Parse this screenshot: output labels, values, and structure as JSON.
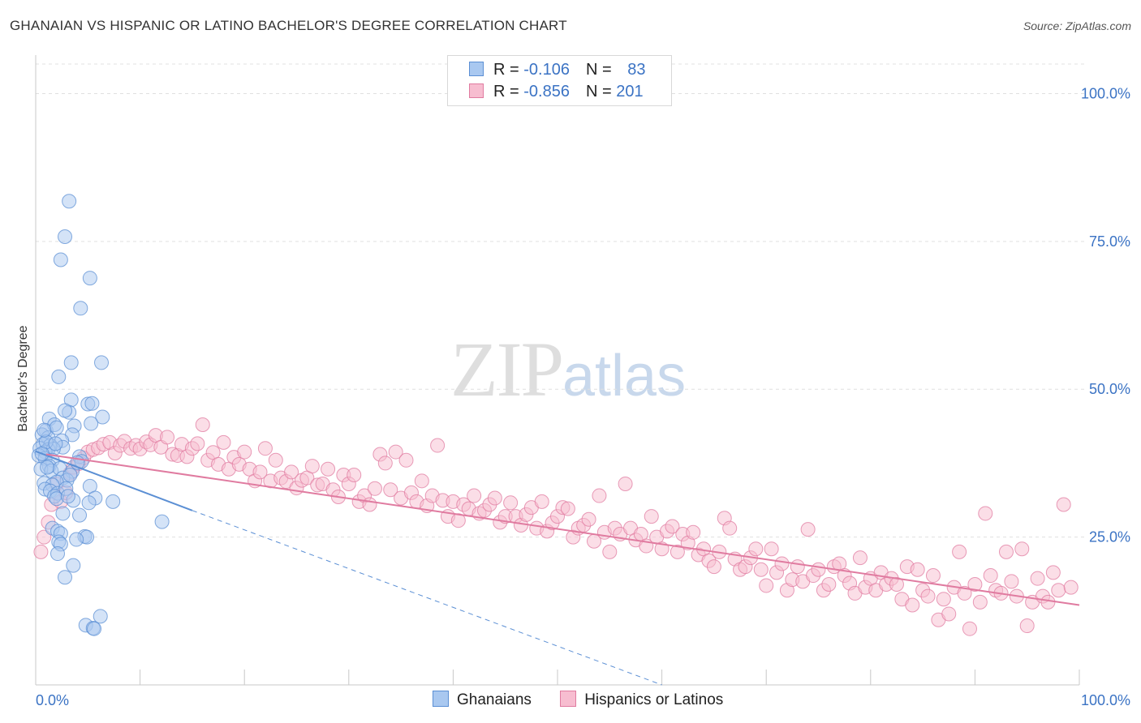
{
  "title": "GHANAIAN VS HISPANIC OR LATINO BACHELOR'S DEGREE CORRELATION CHART",
  "source": "Source: ZipAtlas.com",
  "watermark": {
    "part1": "ZIP",
    "part2": "atlas"
  },
  "legend_top": {
    "rows": [
      {
        "r_label": "R = ",
        "r_value": "-0.106",
        "n_label": "N = ",
        "n_value": "83",
        "fill": "#a9c8f0",
        "stroke": "#5b8fd4"
      },
      {
        "r_label": "R = ",
        "r_value": "-0.856",
        "n_label": "N = ",
        "n_value": "201",
        "fill": "#f7bdd0",
        "stroke": "#e07ba0"
      }
    ]
  },
  "legend_bottom": [
    {
      "label": "Ghanaians",
      "fill": "#a9c8f0",
      "stroke": "#5b8fd4"
    },
    {
      "label": "Hispanics or Latinos",
      "fill": "#f7bdd0",
      "stroke": "#e07ba0"
    }
  ],
  "chart_data": {
    "type": "scatter",
    "title": "GHANAIAN VS HISPANIC OR LATINO BACHELOR'S DEGREE CORRELATION CHART",
    "xlabel": "",
    "ylabel": "Bachelor's Degree",
    "xlim": [
      0,
      100
    ],
    "ylim": [
      0,
      105
    ],
    "x_tick_labels": [
      "0.0%",
      "100.0%"
    ],
    "y_ticks": [
      25,
      50,
      75,
      100
    ],
    "y_tick_labels": [
      "25.0%",
      "50.0%",
      "75.0%",
      "100.0%"
    ],
    "grid": true,
    "legend_position": "top-center",
    "series": [
      {
        "name": "Ghanaians",
        "color": "#5b8fd4",
        "fill": "#a9c8f0",
        "R": -0.106,
        "N": 83,
        "trend_solid": [
          [
            0,
            39.5
          ],
          [
            15,
            29.5
          ]
        ],
        "trend_dashed": [
          [
            15,
            29.5
          ],
          [
            60,
            0
          ]
        ],
        "points": [
          [
            3.2,
            81.8
          ],
          [
            2.8,
            75.8
          ],
          [
            2.4,
            71.9
          ],
          [
            5.2,
            68.8
          ],
          [
            4.3,
            63.7
          ],
          [
            3.4,
            54.5
          ],
          [
            6.3,
            54.5
          ],
          [
            2.2,
            52.1
          ],
          [
            3.4,
            48.2
          ],
          [
            5.0,
            47.5
          ],
          [
            5.4,
            47.6
          ],
          [
            1.3,
            45.0
          ],
          [
            3.2,
            46.1
          ],
          [
            6.4,
            45.3
          ],
          [
            2.8,
            46.4
          ],
          [
            1.0,
            43.0
          ],
          [
            1.8,
            44.0
          ],
          [
            5.3,
            44.2
          ],
          [
            3.7,
            43.8
          ],
          [
            2.0,
            43.5
          ],
          [
            0.6,
            42.3
          ],
          [
            1.2,
            41.8
          ],
          [
            3.5,
            42.3
          ],
          [
            2.5,
            41.3
          ],
          [
            0.7,
            40.7
          ],
          [
            1.4,
            40.5
          ],
          [
            2.6,
            40.2
          ],
          [
            0.4,
            40.0
          ],
          [
            1.2,
            39.8
          ],
          [
            0.9,
            39.4
          ],
          [
            1.7,
            39.9
          ],
          [
            0.3,
            38.8
          ],
          [
            0.9,
            38.3
          ],
          [
            1.6,
            38.0
          ],
          [
            4.2,
            38.6
          ],
          [
            4.4,
            37.8
          ],
          [
            1.3,
            37.0
          ],
          [
            0.5,
            36.5
          ],
          [
            1.5,
            36.2
          ],
          [
            2.3,
            36.6
          ],
          [
            3.5,
            36.1
          ],
          [
            2.6,
            35.0
          ],
          [
            3.0,
            34.6
          ],
          [
            2.0,
            34.3
          ],
          [
            0.8,
            34.1
          ],
          [
            1.6,
            33.8
          ],
          [
            5.2,
            33.6
          ],
          [
            0.9,
            33.1
          ],
          [
            1.4,
            32.8
          ],
          [
            2.1,
            32.4
          ],
          [
            1.8,
            31.9
          ],
          [
            5.7,
            31.6
          ],
          [
            3.6,
            31.2
          ],
          [
            2.0,
            31.5
          ],
          [
            7.4,
            31.0
          ],
          [
            5.1,
            30.8
          ],
          [
            2.6,
            29.0
          ],
          [
            4.2,
            28.7
          ],
          [
            12.1,
            27.6
          ],
          [
            1.6,
            26.5
          ],
          [
            2.1,
            26.0
          ],
          [
            2.4,
            25.6
          ],
          [
            4.7,
            25.1
          ],
          [
            4.9,
            25.0
          ],
          [
            3.9,
            24.6
          ],
          [
            2.2,
            24.2
          ],
          [
            2.4,
            23.8
          ],
          [
            2.1,
            22.2
          ],
          [
            3.6,
            20.2
          ],
          [
            2.8,
            18.2
          ],
          [
            6.2,
            11.6
          ],
          [
            4.8,
            10.1
          ],
          [
            5.5,
            9.6
          ],
          [
            5.6,
            9.5
          ],
          [
            1.0,
            41.1
          ],
          [
            0.6,
            39.1
          ],
          [
            2.9,
            33.2
          ],
          [
            1.1,
            36.8
          ],
          [
            3.1,
            31.9
          ],
          [
            4.0,
            37.6
          ],
          [
            0.8,
            43.1
          ],
          [
            1.9,
            40.8
          ],
          [
            3.3,
            35.5
          ]
        ]
      },
      {
        "name": "Hispanics or Latinos",
        "color": "#e07ba0",
        "fill": "#f7bdd0",
        "R": -0.856,
        "N": 201,
        "trend_solid": [
          [
            1,
            39.0
          ],
          [
            100,
            13.5
          ]
        ],
        "points": [
          [
            0.5,
            22.5
          ],
          [
            0.8,
            25.0
          ],
          [
            1.2,
            27.5
          ],
          [
            1.5,
            30.5
          ],
          [
            2.0,
            34.0
          ],
          [
            2.4,
            31.0
          ],
          [
            2.9,
            32.5
          ],
          [
            3.3,
            35.8
          ],
          [
            3.6,
            36.8
          ],
          [
            4.1,
            37.4
          ],
          [
            4.6,
            38.4
          ],
          [
            5.0,
            39.4
          ],
          [
            5.5,
            39.8
          ],
          [
            6.0,
            40.1
          ],
          [
            6.5,
            40.7
          ],
          [
            7.1,
            41.0
          ],
          [
            7.6,
            39.2
          ],
          [
            8.1,
            40.5
          ],
          [
            8.5,
            41.2
          ],
          [
            9.1,
            40.0
          ],
          [
            9.6,
            40.5
          ],
          [
            10.0,
            39.9
          ],
          [
            10.6,
            41.1
          ],
          [
            11.0,
            40.6
          ],
          [
            11.5,
            42.2
          ],
          [
            12.0,
            40.2
          ],
          [
            12.6,
            41.9
          ],
          [
            13.1,
            39.0
          ],
          [
            13.6,
            38.8
          ],
          [
            14.0,
            40.7
          ],
          [
            14.5,
            38.6
          ],
          [
            15.0,
            40.0
          ],
          [
            15.5,
            40.8
          ],
          [
            16.0,
            44.0
          ],
          [
            16.5,
            38.0
          ],
          [
            17.0,
            39.3
          ],
          [
            17.5,
            37.3
          ],
          [
            18.0,
            41.0
          ],
          [
            18.5,
            36.5
          ],
          [
            19.0,
            38.5
          ],
          [
            19.5,
            37.3
          ],
          [
            20.0,
            39.4
          ],
          [
            20.5,
            36.5
          ],
          [
            21.0,
            34.5
          ],
          [
            21.5,
            36.0
          ],
          [
            22.0,
            40.0
          ],
          [
            22.5,
            34.5
          ],
          [
            23.0,
            38.0
          ],
          [
            23.5,
            35.0
          ],
          [
            24.0,
            34.4
          ],
          [
            24.5,
            36.0
          ],
          [
            25.0,
            33.3
          ],
          [
            25.5,
            34.6
          ],
          [
            26.0,
            35.0
          ],
          [
            26.5,
            37.0
          ],
          [
            27.0,
            33.8
          ],
          [
            27.5,
            34.0
          ],
          [
            28.0,
            36.5
          ],
          [
            28.5,
            33.0
          ],
          [
            29.0,
            31.8
          ],
          [
            29.5,
            35.5
          ],
          [
            30.0,
            34.0
          ],
          [
            30.5,
            35.5
          ],
          [
            31.0,
            31.0
          ],
          [
            31.5,
            32.0
          ],
          [
            32.0,
            30.5
          ],
          [
            32.5,
            33.2
          ],
          [
            33.0,
            39.0
          ],
          [
            33.5,
            37.5
          ],
          [
            34.0,
            33.0
          ],
          [
            34.5,
            39.4
          ],
          [
            35.0,
            31.6
          ],
          [
            35.5,
            38.0
          ],
          [
            36.0,
            32.5
          ],
          [
            36.5,
            31.0
          ],
          [
            37.0,
            34.5
          ],
          [
            37.5,
            30.3
          ],
          [
            38.0,
            32.0
          ],
          [
            38.5,
            40.5
          ],
          [
            39.0,
            31.2
          ],
          [
            39.5,
            28.5
          ],
          [
            40.0,
            31.0
          ],
          [
            40.5,
            27.8
          ],
          [
            41.0,
            30.5
          ],
          [
            41.5,
            29.8
          ],
          [
            42.0,
            32.0
          ],
          [
            42.5,
            29.0
          ],
          [
            43.0,
            29.5
          ],
          [
            43.5,
            30.5
          ],
          [
            44.0,
            31.6
          ],
          [
            44.5,
            27.5
          ],
          [
            45.0,
            28.5
          ],
          [
            45.5,
            30.8
          ],
          [
            46.0,
            28.5
          ],
          [
            46.5,
            27.0
          ],
          [
            47.0,
            28.8
          ],
          [
            47.5,
            30.0
          ],
          [
            48.0,
            26.5
          ],
          [
            48.5,
            31.0
          ],
          [
            49.0,
            26.0
          ],
          [
            49.5,
            27.4
          ],
          [
            50.0,
            28.5
          ],
          [
            50.5,
            30.0
          ],
          [
            51.0,
            29.8
          ],
          [
            51.5,
            25.0
          ],
          [
            52.0,
            26.5
          ],
          [
            52.5,
            27.0
          ],
          [
            53.0,
            28.0
          ],
          [
            53.5,
            24.3
          ],
          [
            54.0,
            32.0
          ],
          [
            54.5,
            25.8
          ],
          [
            55.0,
            22.5
          ],
          [
            55.5,
            26.5
          ],
          [
            56.0,
            25.5
          ],
          [
            56.5,
            34.0
          ],
          [
            57.0,
            26.5
          ],
          [
            57.5,
            24.5
          ],
          [
            58.0,
            25.5
          ],
          [
            58.5,
            23.5
          ],
          [
            59.0,
            28.5
          ],
          [
            59.5,
            25.0
          ],
          [
            60.0,
            23.0
          ],
          [
            60.5,
            26.0
          ],
          [
            61.0,
            26.8
          ],
          [
            61.5,
            22.5
          ],
          [
            62.0,
            25.5
          ],
          [
            62.5,
            24.0
          ],
          [
            63.0,
            25.8
          ],
          [
            63.5,
            22.0
          ],
          [
            64.0,
            23.0
          ],
          [
            64.5,
            21.0
          ],
          [
            65.0,
            20.0
          ],
          [
            65.5,
            22.5
          ],
          [
            66.0,
            28.2
          ],
          [
            66.5,
            26.5
          ],
          [
            67.0,
            21.3
          ],
          [
            67.5,
            19.5
          ],
          [
            68.0,
            20.0
          ],
          [
            68.5,
            21.5
          ],
          [
            69.0,
            23.0
          ],
          [
            69.5,
            19.5
          ],
          [
            70.0,
            16.8
          ],
          [
            70.5,
            23.0
          ],
          [
            71.0,
            19.0
          ],
          [
            71.5,
            20.5
          ],
          [
            72.0,
            16.0
          ],
          [
            72.5,
            17.8
          ],
          [
            73.0,
            20.0
          ],
          [
            73.5,
            17.5
          ],
          [
            74.0,
            26.3
          ],
          [
            74.5,
            18.5
          ],
          [
            75.0,
            19.5
          ],
          [
            75.5,
            16.0
          ],
          [
            76.0,
            17.0
          ],
          [
            76.5,
            20.0
          ],
          [
            77.0,
            20.5
          ],
          [
            77.5,
            18.5
          ],
          [
            78.0,
            17.2
          ],
          [
            78.5,
            15.5
          ],
          [
            79.0,
            21.5
          ],
          [
            79.5,
            16.5
          ],
          [
            80.0,
            18.0
          ],
          [
            80.5,
            16.0
          ],
          [
            81.0,
            19.0
          ],
          [
            81.5,
            17.0
          ],
          [
            82.0,
            18.0
          ],
          [
            82.5,
            17.0
          ],
          [
            83.0,
            14.5
          ],
          [
            83.5,
            20.0
          ],
          [
            84.0,
            13.5
          ],
          [
            84.5,
            19.5
          ],
          [
            85.0,
            16.0
          ],
          [
            85.5,
            15.0
          ],
          [
            86.0,
            18.5
          ],
          [
            86.5,
            11.0
          ],
          [
            87.0,
            14.5
          ],
          [
            87.5,
            12.0
          ],
          [
            88.0,
            16.5
          ],
          [
            88.5,
            22.5
          ],
          [
            89.0,
            15.5
          ],
          [
            89.5,
            9.5
          ],
          [
            90.0,
            17.0
          ],
          [
            90.5,
            14.0
          ],
          [
            91.0,
            29.0
          ],
          [
            91.5,
            18.5
          ],
          [
            92.0,
            16.0
          ],
          [
            92.5,
            15.5
          ],
          [
            93.0,
            22.5
          ],
          [
            93.5,
            17.5
          ],
          [
            94.0,
            15.0
          ],
          [
            94.5,
            23.0
          ],
          [
            95.0,
            10.0
          ],
          [
            95.5,
            14.0
          ],
          [
            96.0,
            18.0
          ],
          [
            96.5,
            15.0
          ],
          [
            97.0,
            14.0
          ],
          [
            97.5,
            19.0
          ],
          [
            98.0,
            16.0
          ],
          [
            98.5,
            30.5
          ],
          [
            99.2,
            16.5
          ]
        ]
      }
    ]
  }
}
